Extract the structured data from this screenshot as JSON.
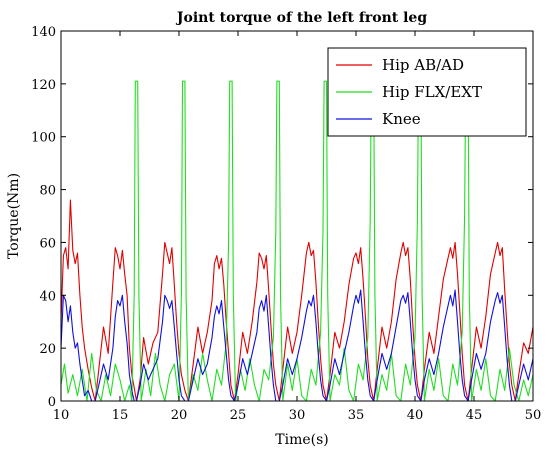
{
  "chart_data": {
    "type": "line",
    "title": "Joint torque of the left front leg",
    "xlabel": "Time(s)",
    "ylabel": "Torque(Nm)",
    "xlim": [
      10,
      50
    ],
    "ylim": [
      0,
      140
    ],
    "xticks": [
      10,
      15,
      20,
      25,
      30,
      35,
      40,
      45,
      50
    ],
    "yticks": [
      0,
      20,
      40,
      60,
      80,
      100,
      120,
      140
    ],
    "grid": false,
    "legend_position": "top-right",
    "series": [
      {
        "name": "Hip AB/AD",
        "color": "#e00000",
        "x": [
          10.0,
          10.2,
          10.4,
          10.6,
          10.8,
          11.0,
          11.2,
          11.4,
          11.6,
          11.8,
          12.0,
          12.3,
          12.6,
          12.9,
          13.2,
          13.6,
          14.0,
          14.4,
          14.6,
          14.8,
          15.0,
          15.2,
          15.4,
          15.6,
          15.8,
          16.0,
          16.2,
          16.4,
          16.7,
          17.0,
          17.4,
          17.8,
          18.2,
          18.6,
          18.8,
          19.0,
          19.2,
          19.4,
          19.6,
          19.8,
          20.0,
          20.2,
          20.5,
          20.8,
          21.2,
          21.6,
          22.0,
          22.4,
          22.8,
          23.0,
          23.2,
          23.4,
          23.6,
          23.8,
          24.0,
          24.2,
          24.4,
          24.7,
          25.0,
          25.4,
          25.8,
          26.2,
          26.6,
          26.8,
          27.0,
          27.2,
          27.4,
          27.6,
          27.8,
          28.0,
          28.2,
          28.5,
          28.8,
          29.2,
          29.6,
          30.0,
          30.4,
          30.8,
          31.0,
          31.2,
          31.4,
          31.6,
          31.8,
          32.0,
          32.2,
          32.5,
          32.8,
          33.2,
          33.6,
          34.0,
          34.4,
          34.8,
          35.0,
          35.2,
          35.4,
          35.6,
          35.8,
          36.0,
          36.2,
          36.5,
          36.8,
          37.2,
          37.6,
          38.0,
          38.4,
          38.8,
          39.0,
          39.2,
          39.4,
          39.6,
          39.8,
          40.0,
          40.2,
          40.5,
          40.8,
          41.2,
          41.6,
          42.0,
          42.4,
          42.8,
          43.0,
          43.2,
          43.4,
          43.6,
          43.8,
          44.0,
          44.2,
          44.5,
          44.8,
          45.2,
          45.6,
          46.0,
          46.4,
          46.8,
          47.0,
          47.2,
          47.4,
          47.6,
          47.8,
          48.0,
          48.2,
          48.5,
          48.8,
          49.2,
          49.6,
          50.0
        ],
        "y": [
          30,
          55,
          58,
          50,
          76,
          57,
          52,
          56,
          40,
          28,
          20,
          12,
          5,
          0,
          12,
          28,
          18,
          45,
          58,
          55,
          50,
          57,
          48,
          40,
          20,
          10,
          5,
          0,
          8,
          24,
          14,
          22,
          26,
          48,
          60,
          56,
          52,
          58,
          44,
          30,
          18,
          10,
          4,
          0,
          14,
          28,
          18,
          26,
          38,
          52,
          55,
          50,
          54,
          44,
          30,
          18,
          6,
          0,
          10,
          26,
          18,
          30,
          45,
          56,
          54,
          50,
          55,
          42,
          28,
          14,
          6,
          0,
          12,
          28,
          18,
          26,
          40,
          56,
          60,
          55,
          57,
          45,
          30,
          16,
          6,
          0,
          10,
          26,
          20,
          30,
          44,
          54,
          56,
          52,
          58,
          46,
          32,
          16,
          6,
          0,
          12,
          28,
          20,
          30,
          46,
          56,
          60,
          55,
          58,
          46,
          30,
          16,
          6,
          0,
          12,
          26,
          18,
          32,
          46,
          54,
          58,
          54,
          60,
          48,
          34,
          18,
          6,
          0,
          12,
          28,
          20,
          32,
          48,
          56,
          60,
          55,
          58,
          42,
          28,
          14,
          6,
          0,
          10,
          22,
          18,
          28
        ]
      },
      {
        "name": "Hip FLX/EXT",
        "color": "#22dd22",
        "x": [
          10.0,
          10.3,
          10.6,
          11.0,
          11.4,
          11.8,
          12.2,
          12.6,
          13.0,
          13.4,
          13.8,
          14.2,
          14.6,
          15.0,
          15.4,
          15.8,
          16.0,
          16.2,
          16.3,
          16.5,
          16.6,
          16.8,
          17.2,
          17.6,
          18.0,
          18.4,
          18.8,
          19.2,
          19.6,
          20.0,
          20.2,
          20.3,
          20.5,
          20.6,
          20.8,
          21.2,
          21.6,
          22.0,
          22.4,
          22.8,
          23.2,
          23.6,
          24.0,
          24.2,
          24.3,
          24.5,
          24.6,
          24.8,
          25.2,
          25.6,
          26.0,
          26.4,
          26.8,
          27.2,
          27.6,
          28.0,
          28.2,
          28.3,
          28.5,
          28.6,
          28.8,
          29.2,
          29.6,
          30.0,
          30.4,
          30.8,
          31.2,
          31.6,
          32.0,
          32.2,
          32.3,
          32.5,
          32.6,
          32.8,
          33.2,
          33.6,
          34.0,
          34.4,
          34.8,
          35.2,
          35.6,
          36.0,
          36.2,
          36.3,
          36.5,
          36.6,
          36.8,
          37.2,
          37.6,
          38.0,
          38.4,
          38.8,
          39.2,
          39.6,
          40.0,
          40.2,
          40.3,
          40.5,
          40.6,
          40.8,
          41.2,
          41.6,
          42.0,
          42.4,
          42.8,
          43.2,
          43.6,
          44.0,
          44.2,
          44.3,
          44.5,
          44.6,
          44.8,
          45.2,
          45.6,
          46.0,
          46.4,
          46.8,
          47.2,
          47.6,
          48.0,
          48.4,
          48.8,
          49.2,
          49.6,
          50.0
        ],
        "y": [
          6,
          14,
          3,
          10,
          2,
          12,
          0,
          18,
          4,
          0,
          10,
          2,
          14,
          8,
          0,
          6,
          0,
          40,
          121,
          121,
          40,
          0,
          12,
          2,
          18,
          6,
          0,
          10,
          14,
          0,
          40,
          121,
          121,
          40,
          0,
          10,
          4,
          18,
          8,
          0,
          12,
          6,
          22,
          60,
          121,
          121,
          40,
          0,
          12,
          4,
          16,
          6,
          0,
          12,
          8,
          24,
          64,
          121,
          121,
          40,
          0,
          14,
          4,
          16,
          2,
          0,
          12,
          6,
          26,
          64,
          121,
          121,
          40,
          0,
          10,
          6,
          20,
          4,
          0,
          14,
          8,
          24,
          68,
          121,
          121,
          40,
          0,
          10,
          4,
          18,
          2,
          0,
          14,
          6,
          24,
          68,
          121,
          121,
          40,
          0,
          12,
          4,
          16,
          2,
          0,
          14,
          6,
          26,
          70,
          121,
          121,
          40,
          0,
          12,
          4,
          16,
          2,
          0,
          12,
          4,
          20,
          6,
          0,
          8,
          2,
          10
        ]
      },
      {
        "name": "Knee",
        "color": "#1010dd",
        "x": [
          10.0,
          10.2,
          10.4,
          10.6,
          10.8,
          11.0,
          11.2,
          11.4,
          11.6,
          11.8,
          12.0,
          12.3,
          12.6,
          12.9,
          13.2,
          13.6,
          14.0,
          14.4,
          14.6,
          14.8,
          15.0,
          15.2,
          15.4,
          15.6,
          15.8,
          16.0,
          16.2,
          16.4,
          16.7,
          17.0,
          17.4,
          17.8,
          18.2,
          18.6,
          18.8,
          19.0,
          19.2,
          19.4,
          19.6,
          19.8,
          20.0,
          20.2,
          20.5,
          20.8,
          21.2,
          21.6,
          22.0,
          22.4,
          22.8,
          23.0,
          23.2,
          23.4,
          23.6,
          23.8,
          24.0,
          24.2,
          24.4,
          24.7,
          25.0,
          25.4,
          25.8,
          26.2,
          26.6,
          26.8,
          27.0,
          27.2,
          27.4,
          27.6,
          27.8,
          28.0,
          28.2,
          28.5,
          28.8,
          29.2,
          29.6,
          30.0,
          30.4,
          30.8,
          31.0,
          31.2,
          31.4,
          31.6,
          31.8,
          32.0,
          32.2,
          32.5,
          32.8,
          33.2,
          33.6,
          34.0,
          34.4,
          34.8,
          35.0,
          35.2,
          35.4,
          35.6,
          35.8,
          36.0,
          36.2,
          36.5,
          36.8,
          37.2,
          37.6,
          38.0,
          38.4,
          38.8,
          39.0,
          39.2,
          39.4,
          39.6,
          39.8,
          40.0,
          40.2,
          40.5,
          40.8,
          41.2,
          41.6,
          42.0,
          42.4,
          42.8,
          43.0,
          43.2,
          43.4,
          43.6,
          43.8,
          44.0,
          44.2,
          44.5,
          44.8,
          45.2,
          45.6,
          46.0,
          46.4,
          46.8,
          47.0,
          47.2,
          47.4,
          47.6,
          47.8,
          48.0,
          48.2,
          48.5,
          48.8,
          49.2,
          49.6,
          50.0
        ],
        "y": [
          20,
          40,
          38,
          30,
          36,
          26,
          20,
          22,
          14,
          8,
          2,
          4,
          0,
          0,
          6,
          14,
          8,
          20,
          32,
          38,
          36,
          40,
          30,
          22,
          10,
          4,
          0,
          0,
          6,
          14,
          8,
          12,
          16,
          30,
          40,
          38,
          35,
          38,
          28,
          18,
          8,
          2,
          0,
          0,
          8,
          16,
          10,
          14,
          24,
          32,
          36,
          33,
          38,
          28,
          18,
          8,
          2,
          0,
          6,
          16,
          10,
          18,
          26,
          35,
          38,
          34,
          40,
          28,
          16,
          6,
          0,
          0,
          6,
          16,
          10,
          16,
          24,
          34,
          38,
          36,
          40,
          30,
          18,
          8,
          2,
          0,
          6,
          16,
          10,
          18,
          26,
          36,
          40,
          37,
          42,
          30,
          18,
          8,
          2,
          0,
          8,
          18,
          12,
          18,
          28,
          38,
          40,
          37,
          41,
          30,
          18,
          8,
          2,
          0,
          8,
          16,
          10,
          18,
          28,
          36,
          40,
          36,
          42,
          30,
          18,
          8,
          2,
          0,
          8,
          18,
          12,
          18,
          30,
          38,
          41,
          37,
          40,
          28,
          16,
          6,
          0,
          0,
          6,
          14,
          8,
          16
        ]
      }
    ]
  }
}
